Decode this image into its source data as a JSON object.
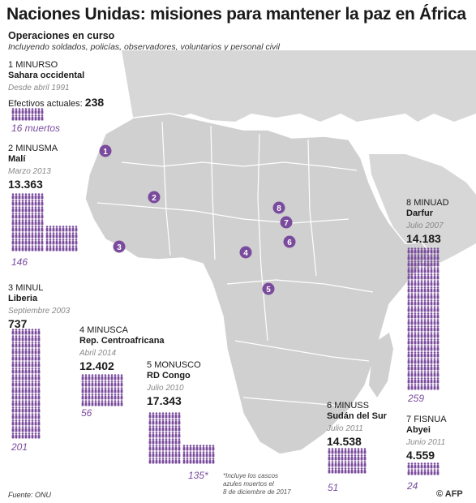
{
  "title": "Naciones Unidas: misiones para mantener la paz en África",
  "subtitle": "Operaciones en curso",
  "subtitle_note": "Incluyendo soldados, policías, observadores, voluntarios y personal civil",
  "accent_color": "#7a4b9d",
  "missions": [
    {
      "num": "1",
      "code": "MINURSO",
      "region": "Sahara occidental",
      "since": "Desde abril 1991",
      "count_label": "Efectivos actuales:",
      "count": "238",
      "deaths": "16 muertos"
    },
    {
      "num": "2",
      "code": "MINUSMA",
      "region": "Malí",
      "since": "Marzo 2013",
      "count": "13.363",
      "deaths": "146"
    },
    {
      "num": "3",
      "code": "MINUL",
      "region": "Liberia",
      "since": "Septiembre 2003",
      "count": "737",
      "deaths": "201"
    },
    {
      "num": "4",
      "code": "MINUSCA",
      "region": "Rep. Centroafricana",
      "since": "Abril 2014",
      "count": "12.402",
      "deaths": "56"
    },
    {
      "num": "5",
      "code": "MONUSCO",
      "region": "RD Congo",
      "since": "Julio 2010",
      "count": "17.343",
      "deaths": "135*"
    },
    {
      "num": "6",
      "code": "MINUSS",
      "region": "Sudán del Sur",
      "since": "Julio 2011",
      "count": "14.538",
      "deaths": "51"
    },
    {
      "num": "7",
      "code": "FISNUA",
      "region": "Abyei",
      "since": "Junio 2011",
      "count": "4.559",
      "deaths": "24"
    },
    {
      "num": "8",
      "code": "MINUAD",
      "region": "Darfur",
      "since": "Julio 2007",
      "count": "14.183",
      "deaths": "259"
    }
  ],
  "footnote": [
    "*Incluye los cascos",
    "azules muertos el",
    "8 de diciembre de 2017"
  ],
  "source": "Fuente: ONU",
  "credit": "© AFP"
}
